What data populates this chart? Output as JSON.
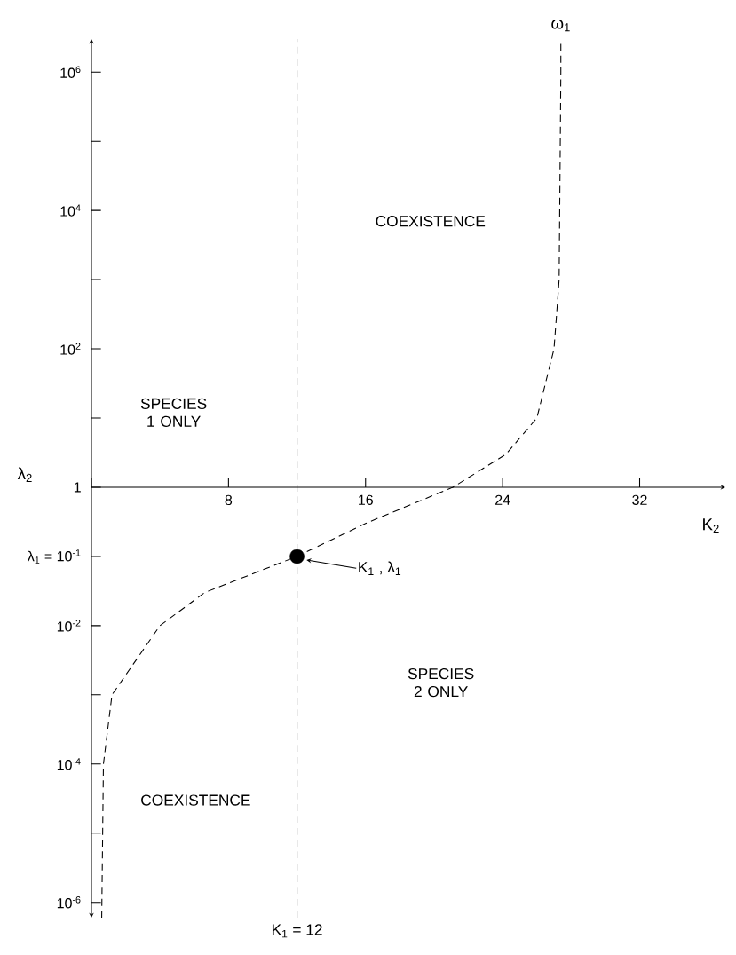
{
  "chart_data": {
    "type": "line",
    "xlabel": "K$_{2}$",
    "ylabel": "λ$_{2}$",
    "xlim": [
      0,
      37
    ],
    "ylim": [
      6e-07,
      3000000.0
    ],
    "xticks": [
      8,
      16,
      24,
      32
    ],
    "yticks": [
      {
        "value": 1e-06,
        "label": "10$^{-6}$"
      },
      {
        "value": 1e-05,
        "label": null
      },
      {
        "value": 0.0001,
        "label": "10$^{-4}$"
      },
      {
        "value": 0.001,
        "label": null
      },
      {
        "value": 0.01,
        "label": "10$^{-2}$"
      },
      {
        "value": 0.1,
        "label": "λ$_{1}$ = 10$^{-1}$"
      },
      1,
      {
        "value": 10,
        "label": null
      },
      {
        "value": 100,
        "label": "10$^{2}$"
      },
      {
        "value": 1000,
        "label": null
      },
      {
        "value": 10000.0,
        "label": "10$^{4}$"
      },
      {
        "value": 100000.0,
        "label": null
      },
      {
        "value": 1000000.0,
        "label": "10$^{6}$"
      }
    ],
    "log": "y",
    "grid": false,
    "series": [
      {
        "name": "ω$_{1}$",
        "color": "#000000",
        "line_style": "dashed",
        "marker": "none",
        "x": [
          0.6,
          0.7,
          1.2,
          4,
          6.6,
          12,
          16,
          21.1,
          24.2,
          26,
          27,
          27.3,
          27.4,
          27.4
        ],
        "values": [
          6e-07,
          0.0001,
          0.001,
          0.01,
          0.03,
          0.1,
          0.3,
          1,
          3,
          10,
          100,
          1000,
          1000000.0,
          3000000.0
        ]
      },
      {
        "type": "scatter",
        "color": "#000000",
        "marker": "circle",
        "x": [
          12
        ],
        "values": [
          0.1
        ]
      }
    ],
    "ref_lines": [
      {
        "axis": "x",
        "value": 12,
        "label": "K$_{1}$ = 12",
        "line_style": "dashed",
        "color": "#000000"
      }
    ],
    "annotations": [
      "COEXISTENCE",
      "SPECIES 1 ONLY",
      "SPECIES 2 ONLY",
      "COEXISTENCE",
      "K$_{1}$ , λ$_{1}$"
    ]
  }
}
